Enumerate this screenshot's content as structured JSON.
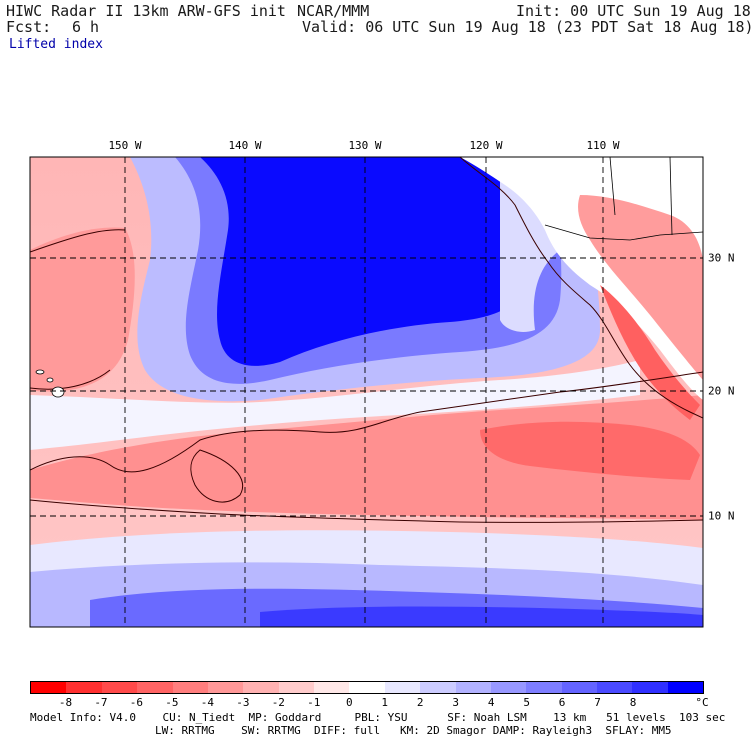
{
  "header": {
    "model": "HIWC Radar II 13km ARW-GFS init",
    "org": "NCAR/MMM",
    "init": "Init: 00 UTC Sun 19 Aug 18",
    "fcst_label": "Fcst:",
    "fcst_value": "6 h",
    "valid": "Valid: 06 UTC Sun 19 Aug 18 (23 PDT Sat 18 Aug 18)",
    "field": "Lifted index"
  },
  "map": {
    "lon_labels": [
      "150 W",
      "140 W",
      "130 W",
      "120 W",
      "110 W"
    ],
    "lat_labels": [
      "30 N",
      "20 N",
      "10 N"
    ],
    "land_color": "#ffffff",
    "contour_color": "#3a0000",
    "grid_line_style": "dashed"
  },
  "colorbar": {
    "colors": [
      "#ff0000",
      "#ff3030",
      "#ff4a4a",
      "#ff6464",
      "#ff7e7e",
      "#ff9898",
      "#ffb2b2",
      "#ffcccc",
      "#ffe8e8",
      "#ffffff",
      "#e8e8ff",
      "#ccccff",
      "#b2b2ff",
      "#9898ff",
      "#7e7eff",
      "#6464ff",
      "#4a4aff",
      "#3030ff",
      "#0000ff"
    ],
    "ticks": [
      "-8",
      "-7",
      "-6",
      "-5",
      "-4",
      "-3",
      "-2",
      "-1",
      "0",
      "1",
      "2",
      "3",
      "4",
      "5",
      "6",
      "7",
      "8"
    ],
    "unit": "°C"
  },
  "footer": {
    "line1": "Model Info: V4.0    CU: N_Tiedt  MP: Goddard     PBL: YSU      SF: Noah LSM    13 km   51 levels  103 sec",
    "line2": "LW: RRTMG    SW: RRTMG  DIFF: full   KM: 2D Smagor DAMP: Rayleigh3  SFLAY: MM5"
  }
}
